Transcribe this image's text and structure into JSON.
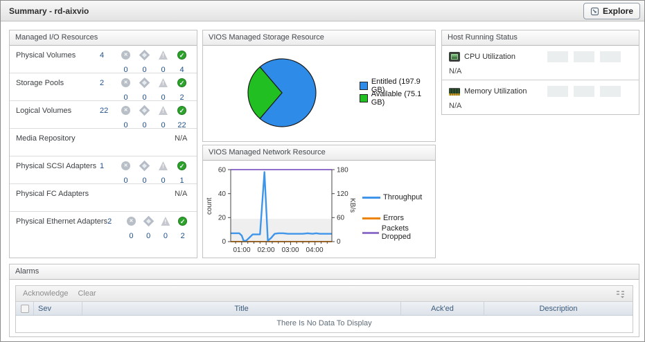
{
  "header": {
    "title": "Summary -  rd-aixvio",
    "explore_label": "Explore"
  },
  "colors": {
    "status_normal_green": "#2da32d",
    "status_disabled_gray": "#b9bfc7",
    "count_navy": "#1d4f87",
    "pie_entitled_blue": "#2e8ce8",
    "pie_available_green": "#21bf21",
    "line_throughput_blue": "#3e95e9",
    "line_errors_orange": "#ee8407",
    "line_packets_purple": "#9070ca"
  },
  "icons": {
    "explore": "explore-drilldown-icon",
    "status": [
      "fatal-icon",
      "critical-icon",
      "warning-icon",
      "normal-icon"
    ],
    "cpu": "cpu-chip-icon",
    "memory": "memory-module-icon",
    "alarm_options": "table-options-icon"
  },
  "io_panel": {
    "title": "Managed I/O Resources",
    "rows": [
      {
        "label": "Physical Volumes",
        "total": "4",
        "counts": [
          "0",
          "0",
          "0",
          "4"
        ]
      },
      {
        "label": "Storage Pools",
        "total": "2",
        "counts": [
          "0",
          "0",
          "0",
          "2"
        ]
      },
      {
        "label": "Logical Volumes",
        "total": "22",
        "counts": [
          "0",
          "0",
          "0",
          "22"
        ]
      },
      {
        "label": "Media Repository",
        "total": "N/A"
      },
      {
        "label": "Physical SCSI Adapters",
        "total": "1",
        "counts": [
          "0",
          "0",
          "0",
          "1"
        ]
      },
      {
        "label": "Physical FC Adapters",
        "total": "N/A"
      },
      {
        "label": "Physical Ethernet Adapters",
        "total": "2",
        "counts": [
          "0",
          "0",
          "0",
          "2"
        ]
      }
    ]
  },
  "storage_panel": {
    "title": "VIOS Managed Storage Resource"
  },
  "network_panel": {
    "title": "VIOS Managed Network Resource"
  },
  "host_panel": {
    "title": "Host Running Status",
    "rows": [
      {
        "label": "CPU Utilization",
        "value": "N/A"
      },
      {
        "label": "Memory Utilization",
        "value": "N/A"
      }
    ]
  },
  "alarms_panel": {
    "title": "Alarms",
    "toolbar": {
      "acknowledge_label": "Acknowledge",
      "clear_label": "Clear"
    },
    "columns": [
      "Sev",
      "Title",
      "Ack'ed",
      "Description"
    ],
    "empty_message": "There Is No Data To Display"
  },
  "chart_data": [
    {
      "type": "pie",
      "title": "VIOS Managed Storage Resource",
      "slices": [
        {
          "label": "Entitled (197.9 GB)",
          "value": 197.9,
          "color": "#2e8ce8"
        },
        {
          "label": "Available (75.1 GB)",
          "value": 75.1,
          "color": "#21bf21"
        }
      ],
      "unit": "GB",
      "legend_position": "right"
    },
    {
      "type": "line",
      "title": "VIOS Managed Network Resource",
      "ylabel_left": "count",
      "ylabel_right": "KB/s",
      "ylim_left": [
        0,
        60
      ],
      "ylim_right": [
        0,
        180
      ],
      "left_ticks": [
        "0",
        "20",
        "40",
        "60"
      ],
      "right_ticks": [
        "0",
        "60",
        "120",
        "180"
      ],
      "x_ticks": [
        "01:00",
        "02:00",
        "03:00",
        "04:00"
      ],
      "x_tick_hours": [
        1,
        2,
        3,
        4
      ],
      "xlim_hours": [
        0.55,
        4.69
      ],
      "band_left": [
        0,
        19
      ],
      "grid": false,
      "legend_position": "right",
      "series": [
        {
          "name": "Throughput",
          "color": "#3e95e9",
          "axis": "left",
          "points": [
            [
              0.55,
              7
            ],
            [
              0.9,
              7
            ],
            [
              1.0,
              5
            ],
            [
              1.08,
              0.7
            ],
            [
              1.18,
              0.7
            ],
            [
              1.3,
              3
            ],
            [
              1.45,
              6
            ],
            [
              1.62,
              6
            ],
            [
              1.75,
              6
            ],
            [
              1.93,
              58
            ],
            [
              2.07,
              0.7
            ],
            [
              2.2,
              3
            ],
            [
              2.35,
              6.5
            ],
            [
              2.5,
              7
            ],
            [
              2.7,
              7
            ],
            [
              2.9,
              6.5
            ],
            [
              3.1,
              6.5
            ],
            [
              3.3,
              6.5
            ],
            [
              3.5,
              6.5
            ],
            [
              3.7,
              7
            ],
            [
              3.9,
              6.5
            ],
            [
              4.05,
              7
            ],
            [
              4.2,
              6.5
            ],
            [
              4.45,
              6.5
            ],
            [
              4.69,
              6.5
            ]
          ]
        },
        {
          "name": "Errors",
          "color": "#ee8407",
          "axis": "left",
          "points": [
            [
              0.55,
              0
            ],
            [
              4.69,
              0
            ]
          ]
        },
        {
          "name": "Packets Dropped",
          "color": "#9070ca",
          "axis": "left",
          "points": [
            [
              0.55,
              60
            ],
            [
              4.69,
              60
            ]
          ]
        }
      ]
    }
  ]
}
